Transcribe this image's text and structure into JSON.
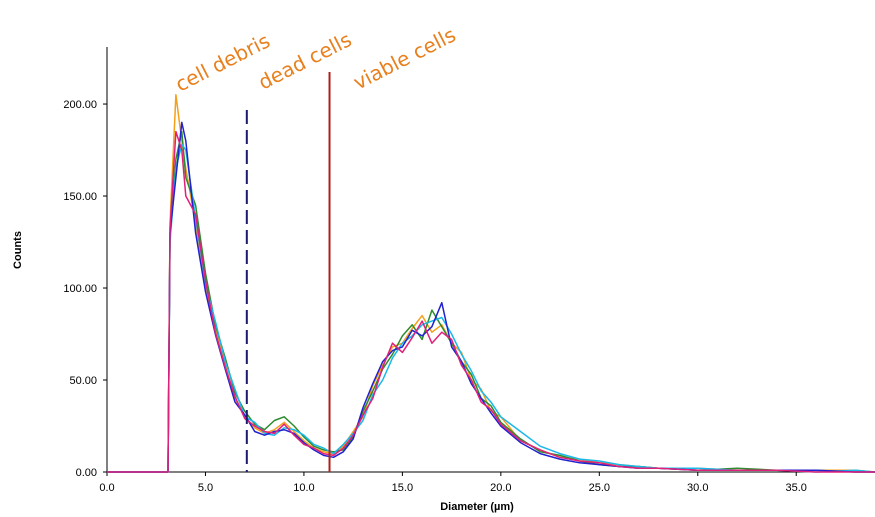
{
  "chart_data": {
    "type": "line",
    "x_label": "Diameter (µm)",
    "y_label": "Counts",
    "x": [
      0,
      3.1,
      3.2,
      3.5,
      3.8,
      4,
      4.5,
      5,
      5.5,
      6,
      6.5,
      7,
      7.5,
      8,
      8.5,
      9,
      9.5,
      10,
      10.5,
      11,
      11.5,
      12,
      12.5,
      13,
      13.5,
      14,
      14.5,
      15,
      15.5,
      16,
      16.5,
      17,
      17.5,
      18,
      18.5,
      19,
      19.5,
      20,
      21,
      22,
      23,
      24,
      25,
      26,
      27,
      28,
      30,
      32,
      34,
      36,
      38,
      39
    ],
    "series": [
      {
        "color": "#f5a01a",
        "values": [
          0,
          0,
          135,
          205,
          180,
          165,
          135,
          100,
          78,
          58,
          40,
          30,
          24,
          21,
          23,
          27,
          22,
          17,
          13,
          11,
          10,
          14,
          22,
          30,
          47,
          58,
          68,
          70,
          78,
          85,
          76,
          80,
          70,
          65,
          50,
          45,
          33,
          30,
          17,
          12,
          8,
          7,
          5,
          4,
          3,
          2,
          2,
          1,
          1,
          1,
          1,
          0
        ]
      },
      {
        "color": "#2e8b2e",
        "values": [
          0,
          0,
          128,
          170,
          185,
          160,
          145,
          108,
          80,
          62,
          43,
          33,
          26,
          23,
          28,
          30,
          25,
          19,
          14,
          12,
          11,
          12,
          19,
          33,
          44,
          56,
          64,
          74,
          80,
          72,
          88,
          79,
          70,
          60,
          53,
          40,
          36,
          27,
          18,
          11,
          9,
          6,
          4,
          3,
          3,
          2,
          1,
          2,
          1,
          1,
          0,
          0
        ]
      },
      {
        "color": "#1ab8ea",
        "values": [
          0,
          0,
          125,
          165,
          178,
          175,
          138,
          102,
          82,
          60,
          45,
          30,
          27,
          21,
          20,
          24,
          23,
          20,
          15,
          13,
          10,
          15,
          21,
          28,
          42,
          50,
          62,
          70,
          74,
          80,
          82,
          84,
          75,
          64,
          55,
          44,
          38,
          30,
          22,
          14,
          10,
          7,
          6,
          4,
          3,
          2,
          2,
          1,
          1,
          0,
          1,
          0
        ]
      },
      {
        "color": "#2222d0",
        "values": [
          0,
          0,
          130,
          160,
          190,
          180,
          130,
          98,
          75,
          56,
          38,
          31,
          22,
          20,
          22,
          23,
          21,
          16,
          12,
          9,
          8,
          11,
          18,
          35,
          48,
          60,
          66,
          68,
          77,
          74,
          79,
          92,
          68,
          60,
          48,
          40,
          32,
          25,
          16,
          10,
          7,
          5,
          4,
          3,
          2,
          2,
          1,
          1,
          1,
          1,
          0,
          0
        ]
      },
      {
        "color": "#e0207a",
        "values": [
          0,
          0,
          132,
          185,
          175,
          150,
          140,
          104,
          76,
          57,
          41,
          29,
          25,
          22,
          21,
          26,
          20,
          15,
          13,
          10,
          9,
          13,
          20,
          31,
          40,
          57,
          70,
          65,
          73,
          82,
          70,
          76,
          72,
          58,
          50,
          38,
          34,
          26,
          17,
          12,
          8,
          6,
          5,
          3,
          2,
          2,
          1,
          1,
          1,
          0,
          0,
          0
        ]
      }
    ],
    "xlim": [
      0,
      39
    ],
    "ylim": [
      0,
      231
    ],
    "xticks": [
      {
        "value": 0,
        "label": "0.0"
      },
      {
        "value": 5,
        "label": "5.0"
      },
      {
        "value": 10,
        "label": "10.0"
      },
      {
        "value": 15,
        "label": "15.0"
      },
      {
        "value": 20,
        "label": "20.0"
      },
      {
        "value": 25,
        "label": "25.0"
      },
      {
        "value": 30,
        "label": "30.0"
      },
      {
        "value": 35,
        "label": "35.0"
      }
    ],
    "yticks": [
      {
        "value": 0,
        "label": "0.00"
      },
      {
        "value": 50,
        "label": "50.00"
      },
      {
        "value": 100,
        "label": "100.00"
      },
      {
        "value": 150,
        "label": "150.00"
      },
      {
        "value": 200,
        "label": "200.00"
      }
    ],
    "thresholds": [
      {
        "value": 7.1,
        "color": "#1a1a6e",
        "style": "dashed"
      },
      {
        "value": 11.3,
        "color": "#b0201a",
        "style": "solid"
      }
    ],
    "annotations": [
      "cell debris",
      "dead cells",
      "viable cells"
    ]
  }
}
